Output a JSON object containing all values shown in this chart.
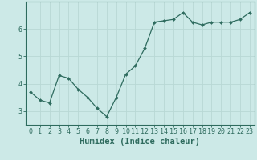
{
  "x": [
    0,
    1,
    2,
    3,
    4,
    5,
    6,
    7,
    8,
    9,
    10,
    11,
    12,
    13,
    14,
    15,
    16,
    17,
    18,
    19,
    20,
    21,
    22,
    23
  ],
  "y": [
    3.7,
    3.4,
    3.3,
    4.3,
    4.2,
    3.8,
    3.5,
    3.1,
    2.8,
    3.5,
    4.35,
    4.65,
    5.3,
    6.25,
    6.3,
    6.35,
    6.6,
    6.25,
    6.15,
    6.25,
    6.25,
    6.25,
    6.35,
    6.6
  ],
  "line_color": "#2e6b5e",
  "marker": "D",
  "marker_size": 2.0,
  "bg_color": "#cce9e7",
  "grid_color": "#b8d8d5",
  "xlabel": "Humidex (Indice chaleur)",
  "yticks": [
    3,
    4,
    5,
    6
  ],
  "xticks": [
    0,
    1,
    2,
    3,
    4,
    5,
    6,
    7,
    8,
    9,
    10,
    11,
    12,
    13,
    14,
    15,
    16,
    17,
    18,
    19,
    20,
    21,
    22,
    23
  ],
  "ylim": [
    2.5,
    7.0
  ],
  "xlim": [
    -0.5,
    23.5
  ],
  "xlabel_fontsize": 7.5,
  "tick_fontsize": 6.0,
  "axis_color": "#2e6b5e",
  "linewidth": 0.9
}
